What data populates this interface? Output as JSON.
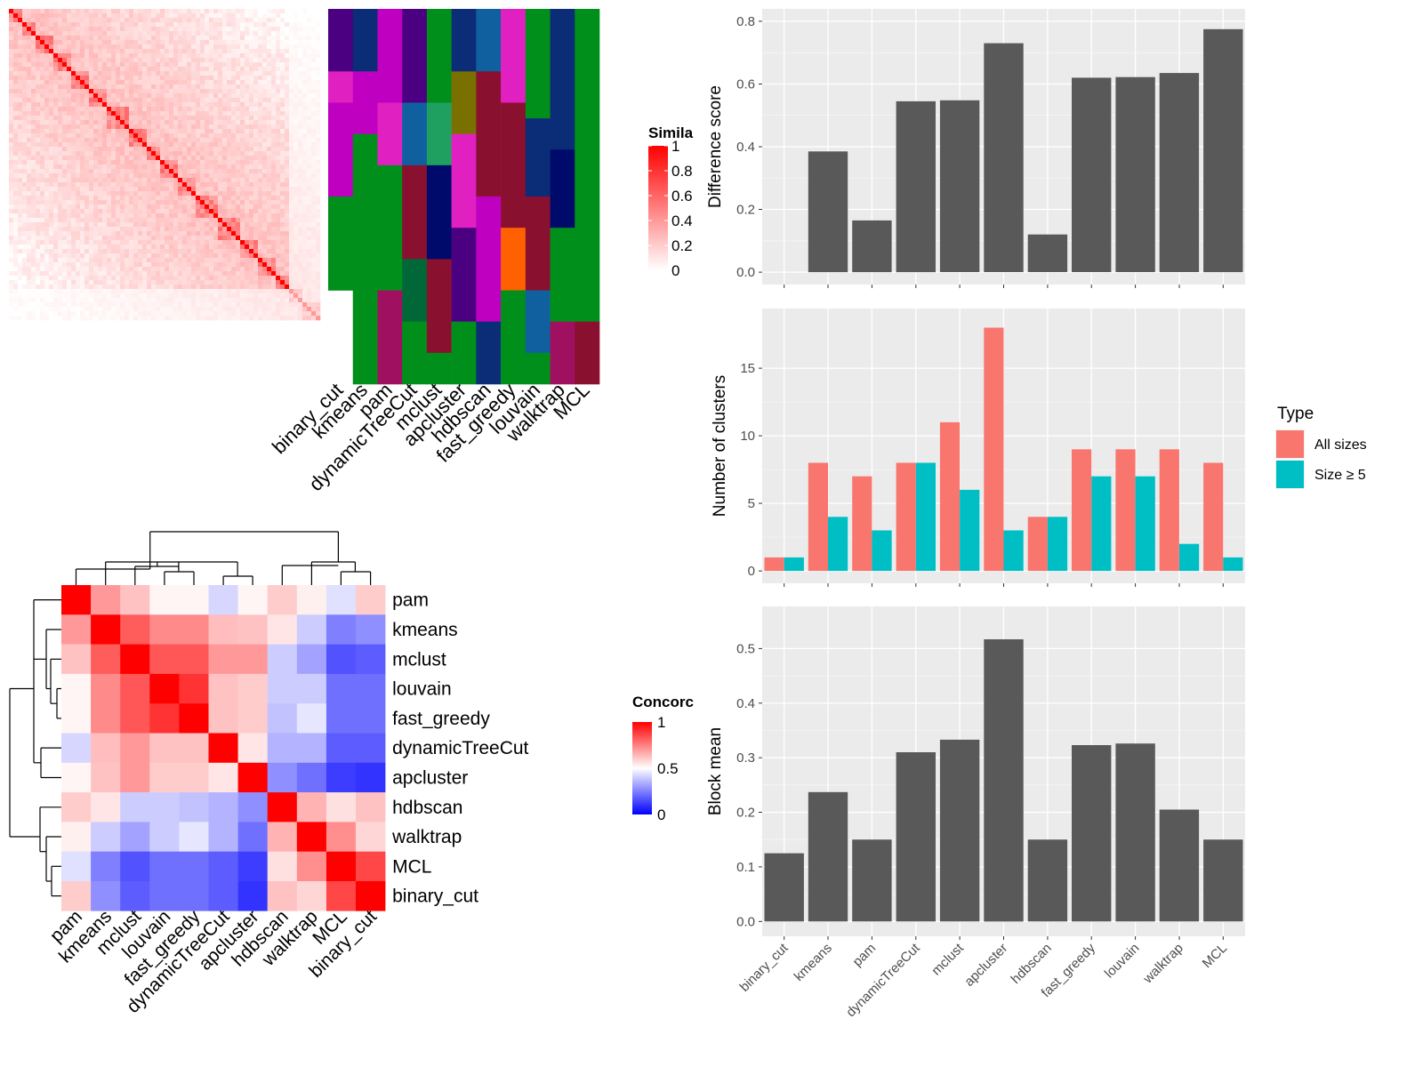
{
  "methods_order_bars": [
    "binary_cut",
    "kmeans",
    "pam",
    "dynamicTreeCut",
    "mclust",
    "apcluster",
    "hdbscan",
    "fast_greedy",
    "louvain",
    "walktrap",
    "MCL"
  ],
  "similarity_heatmap": {
    "legend_title": "Simila",
    "legend_ticks": [
      "0",
      "0.2",
      "0.4",
      "0.6",
      "0.8",
      "1"
    ],
    "column_labels": [
      "binary_cut",
      "kmeans",
      "pam",
      "dynamicTreeCut",
      "mclust",
      "apcluster",
      "hdbscan",
      "fast_greedy",
      "louvain",
      "walktrap",
      "MCL"
    ],
    "colors": {
      "high": "#ff0000",
      "low": "#ffffff"
    }
  },
  "concordance_heatmap": {
    "legend_title": "Concorc",
    "legend_ticks": [
      "0",
      "0.5",
      "1"
    ],
    "row_labels": [
      "pam",
      "kmeans",
      "mclust",
      "louvain",
      "fast_greedy",
      "dynamicTreeCut",
      "apcluster",
      "hdbscan",
      "walktrap",
      "MCL",
      "binary_cut"
    ],
    "col_labels": [
      "pam",
      "kmeans",
      "mclust",
      "louvain",
      "fast_greedy",
      "dynamicTreeCut",
      "apcluster",
      "hdbscan",
      "walktrap",
      "MCL",
      "binary_cut"
    ],
    "colors": {
      "high": "#ff0000",
      "mid": "#ffffff",
      "low": "#0000ff"
    }
  },
  "chart_data": [
    {
      "type": "heatmap",
      "title": "",
      "legend": "Simila",
      "columns": [
        "binary_cut",
        "kmeans",
        "pam",
        "dynamicTreeCut",
        "mclust",
        "apcluster",
        "hdbscan",
        "fast_greedy",
        "louvain",
        "walktrap",
        "MCL"
      ],
      "note_values": "row values not printed"
    },
    {
      "type": "heatmap",
      "legend": "Concorc",
      "rows": [
        "pam",
        "kmeans",
        "mclust",
        "louvain",
        "fast_greedy",
        "dynamicTreeCut",
        "apcluster",
        "hdbscan",
        "walktrap",
        "MCL",
        "binary_cut"
      ],
      "values": [
        [
          1.0,
          0.7,
          0.62,
          0.52,
          0.52,
          0.42,
          0.52,
          0.6,
          0.53,
          0.44,
          0.6
        ],
        [
          0.7,
          1.0,
          0.82,
          0.73,
          0.73,
          0.63,
          0.62,
          0.55,
          0.4,
          0.25,
          0.28
        ],
        [
          0.62,
          0.82,
          1.0,
          0.83,
          0.83,
          0.7,
          0.7,
          0.4,
          0.32,
          0.16,
          0.18
        ],
        [
          0.52,
          0.73,
          0.83,
          1.0,
          0.9,
          0.62,
          0.6,
          0.4,
          0.4,
          0.22,
          0.22
        ],
        [
          0.52,
          0.73,
          0.83,
          0.9,
          1.0,
          0.62,
          0.6,
          0.38,
          0.45,
          0.22,
          0.22
        ],
        [
          0.42,
          0.63,
          0.7,
          0.62,
          0.62,
          1.0,
          0.55,
          0.35,
          0.35,
          0.18,
          0.18
        ],
        [
          0.52,
          0.62,
          0.7,
          0.6,
          0.6,
          0.55,
          1.0,
          0.28,
          0.22,
          0.12,
          0.1
        ],
        [
          0.6,
          0.55,
          0.4,
          0.4,
          0.38,
          0.35,
          0.28,
          1.0,
          0.65,
          0.56,
          0.62
        ],
        [
          0.53,
          0.4,
          0.32,
          0.4,
          0.45,
          0.35,
          0.22,
          0.65,
          1.0,
          0.72,
          0.58
        ],
        [
          0.44,
          0.25,
          0.16,
          0.22,
          0.22,
          0.18,
          0.12,
          0.56,
          0.72,
          1.0,
          0.86
        ],
        [
          0.6,
          0.28,
          0.18,
          0.22,
          0.22,
          0.18,
          0.1,
          0.62,
          0.58,
          0.86,
          1.0
        ]
      ]
    },
    {
      "type": "bar",
      "categories": [
        "binary_cut",
        "kmeans",
        "pam",
        "dynamicTreeCut",
        "mclust",
        "apcluster",
        "hdbscan",
        "fast_greedy",
        "louvain",
        "walktrap",
        "MCL"
      ],
      "values": [
        0,
        0.385,
        0.165,
        0.545,
        0.548,
        0.73,
        0.12,
        0.62,
        0.622,
        0.635,
        0.775
      ],
      "xlabel": "",
      "ylabel": "Difference score",
      "ylim": [
        0,
        0.8
      ],
      "yticks": [
        "0.0",
        "0.2",
        "0.4",
        "0.6",
        "0.8"
      ]
    },
    {
      "type": "bar",
      "categories": [
        "binary_cut",
        "kmeans",
        "pam",
        "dynamicTreeCut",
        "mclust",
        "apcluster",
        "hdbscan",
        "fast_greedy",
        "louvain",
        "walktrap",
        "MCL"
      ],
      "series": [
        {
          "name": "All sizes",
          "values": [
            1,
            8,
            7,
            8,
            11,
            18,
            4,
            9,
            9,
            9,
            8
          ],
          "color": "#f8766d"
        },
        {
          "name": "Size ≥ 5",
          "values": [
            1,
            4,
            3,
            8,
            6,
            3,
            4,
            7,
            7,
            2,
            1
          ],
          "color": "#00bfc4"
        }
      ],
      "legend_title": "Type",
      "legend": "right",
      "xlabel": "",
      "ylabel": "Number of clusters",
      "ylim": [
        0,
        18.5
      ],
      "yticks": [
        "0",
        "5",
        "10",
        "15"
      ]
    },
    {
      "type": "bar",
      "categories": [
        "binary_cut",
        "kmeans",
        "pam",
        "dynamicTreeCut",
        "mclust",
        "apcluster",
        "hdbscan",
        "fast_greedy",
        "louvain",
        "walktrap",
        "MCL"
      ],
      "values": [
        0.125,
        0.237,
        0.15,
        0.31,
        0.333,
        0.517,
        0.15,
        0.323,
        0.326,
        0.205,
        0.15
      ],
      "xlabel": "",
      "ylabel": "Block mean",
      "ylim": [
        0,
        0.55
      ],
      "yticks": [
        "0.0",
        "0.1",
        "0.2",
        "0.3",
        "0.4",
        "0.5"
      ]
    }
  ]
}
